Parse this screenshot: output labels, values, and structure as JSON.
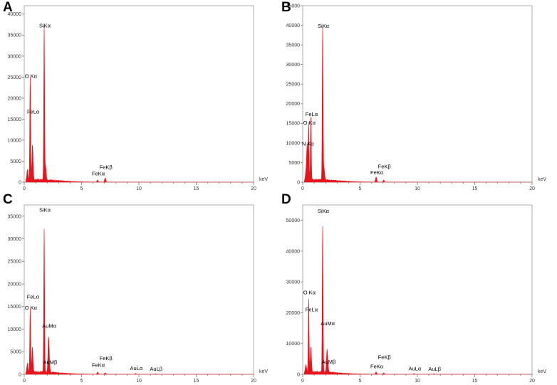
{
  "panels": [
    {
      "letter": "A"
    },
    {
      "letter": "B"
    },
    {
      "letter": "C"
    },
    {
      "letter": "D"
    }
  ],
  "chart_data": [
    {
      "type": "line",
      "title": "",
      "xlabel": "keV",
      "ylabel": "",
      "xlim": [
        0,
        20
      ],
      "ylim": [
        0,
        42000
      ],
      "x_ticks": [
        0,
        5,
        10,
        15,
        20
      ],
      "y_ticks": [
        0,
        5000,
        10000,
        15000,
        20000,
        25000,
        30000,
        35000,
        40000
      ],
      "series": [
        {
          "color": "#e8141c",
          "peaks": [
            [
              0.28,
              2500
            ],
            [
              0.52,
              24500
            ],
            [
              0.72,
              8300
            ],
            [
              1.74,
              36500
            ],
            [
              1.86,
              3300
            ],
            [
              6.4,
              450
            ],
            [
              7.06,
              1000
            ]
          ]
        }
      ],
      "peak_labels": [
        {
          "text": "SiKα",
          "x": 1.74,
          "y": 36500
        },
        {
          "text": "O Kα",
          "x": 0.52,
          "y": 24500
        },
        {
          "text": "FeLα",
          "x": 0.72,
          "y": 16000
        },
        {
          "text": "FeKβ",
          "x": 7.06,
          "y": 2800
        },
        {
          "text": "FeKα",
          "x": 6.4,
          "y": 1300
        }
      ]
    },
    {
      "type": "line",
      "title": "",
      "xlabel": "keV",
      "ylabel": "",
      "xlim": [
        0,
        20
      ],
      "ylim": [
        0,
        45000
      ],
      "x_ticks": [
        0,
        5,
        10,
        15,
        20
      ],
      "y_ticks": [
        0,
        5000,
        10000,
        15000,
        20000,
        25000,
        30000,
        35000,
        40000,
        45000
      ],
      "series": [
        {
          "color": "#e8141c",
          "peaks": [
            [
              0.28,
              2000
            ],
            [
              0.39,
              9000
            ],
            [
              0.52,
              14300
            ],
            [
              0.71,
              16500
            ],
            [
              1.74,
              39000
            ],
            [
              1.86,
              3000
            ],
            [
              6.4,
              1300
            ],
            [
              7.06,
              500
            ]
          ]
        }
      ],
      "peak_labels": [
        {
          "text": "SiKα",
          "x": 1.74,
          "y": 39000
        },
        {
          "text": "FeLα",
          "x": 0.71,
          "y": 16500
        },
        {
          "text": "O Kα",
          "x": 0.52,
          "y": 14300
        },
        {
          "text": "N Kα",
          "x": 0.39,
          "y": 9000
        },
        {
          "text": "FeKβ",
          "x": 7.06,
          "y": 3200
        },
        {
          "text": "FeKα",
          "x": 6.4,
          "y": 1600
        }
      ]
    },
    {
      "type": "line",
      "title": "",
      "xlabel": "keV",
      "ylabel": "",
      "xlim": [
        0,
        20
      ],
      "ylim": [
        0,
        37500
      ],
      "x_ticks": [
        0,
        5,
        10,
        15,
        20
      ],
      "y_ticks": [
        0,
        5000,
        10000,
        15000,
        20000,
        25000,
        30000,
        35000
      ],
      "series": [
        {
          "color": "#e8141c",
          "peaks": [
            [
              0.28,
              2000
            ],
            [
              0.52,
              14000
            ],
            [
              0.71,
              5500
            ],
            [
              1.74,
              31800
            ],
            [
              2.12,
              7500
            ],
            [
              2.2,
              1300
            ],
            [
              6.4,
              450
            ],
            [
              7.06,
              300
            ],
            [
              9.71,
              180
            ],
            [
              11.44,
              120
            ]
          ]
        }
      ],
      "peak_labels": [
        {
          "text": "SiKα",
          "x": 1.74,
          "y": 35700
        },
        {
          "text": "FeLα",
          "x": 0.71,
          "y": 16500
        },
        {
          "text": "O Kα",
          "x": 0.52,
          "y": 14000
        },
        {
          "text": "AuMα",
          "x": 2.12,
          "y": 10000
        },
        {
          "text": "AuMβ",
          "x": 2.2,
          "y": 2000
        },
        {
          "text": "FeKβ",
          "x": 7.06,
          "y": 2800
        },
        {
          "text": "FeKα",
          "x": 6.4,
          "y": 1300
        },
        {
          "text": "AuLα",
          "x": 9.71,
          "y": 600
        },
        {
          "text": "AuLβ",
          "x": 11.44,
          "y": 500
        }
      ]
    },
    {
      "type": "line",
      "title": "",
      "xlabel": "keV",
      "ylabel": "",
      "xlim": [
        0,
        20
      ],
      "ylim": [
        0,
        55000
      ],
      "x_ticks": [
        0,
        5,
        10,
        15,
        20
      ],
      "y_ticks": [
        0,
        10000,
        20000,
        30000,
        40000,
        50000
      ],
      "series": [
        {
          "color": "#e8141c",
          "peaks": [
            [
              0.28,
              2500
            ],
            [
              0.52,
              24000
            ],
            [
              0.71,
              8000
            ],
            [
              1.74,
              47500
            ],
            [
              2.12,
              7000
            ],
            [
              2.2,
              1500
            ],
            [
              6.4,
              700
            ],
            [
              7.06,
              400
            ],
            [
              9.71,
              200
            ],
            [
              11.44,
              150
            ]
          ]
        }
      ],
      "peak_labels": [
        {
          "text": "SiKα",
          "x": 1.74,
          "y": 52000
        },
        {
          "text": "O Kα",
          "x": 0.52,
          "y": 25500
        },
        {
          "text": "FeLα",
          "x": 0.71,
          "y": 20000
        },
        {
          "text": "AuMα",
          "x": 2.12,
          "y": 15500
        },
        {
          "text": "AuMβ",
          "x": 2.2,
          "y": 3000
        },
        {
          "text": "FeKβ",
          "x": 7.06,
          "y": 4500
        },
        {
          "text": "FeKα",
          "x": 6.4,
          "y": 1500
        },
        {
          "text": "AuLα",
          "x": 9.71,
          "y": 800
        },
        {
          "text": "AuLβ",
          "x": 11.44,
          "y": 700
        }
      ]
    }
  ]
}
